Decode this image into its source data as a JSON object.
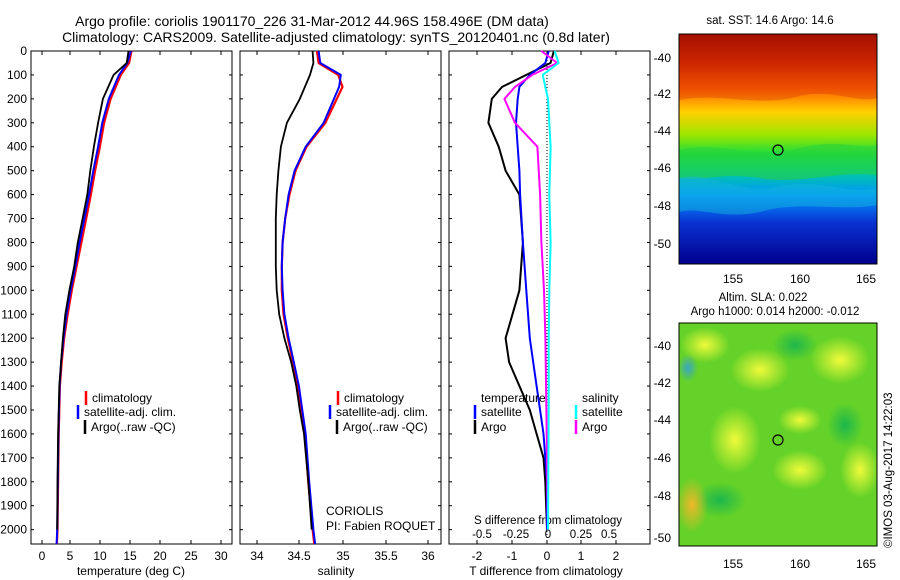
{
  "title": {
    "line1": "Argo profile: coriolis 1901170_226 31-Mar-2012 44.96S 158.496E (DM data)",
    "line2": "Climatology: CARS2009. Satellite-adjusted climatology: synTS_20120401.nc (0.8d later)"
  },
  "depth_ticks": [
    0,
    100,
    200,
    300,
    400,
    500,
    600,
    700,
    800,
    900,
    1000,
    1100,
    1200,
    1300,
    1400,
    1500,
    1600,
    1700,
    1800,
    1900,
    2000
  ],
  "panels": {
    "temperature": {
      "xlabel": "temperature (deg C)",
      "xticks": [
        "0",
        "5",
        "10",
        "15",
        "20",
        "25",
        "30"
      ],
      "legend": [
        "climatology",
        "satellite-adj. clim.",
        "Argo(..raw -QC)"
      ]
    },
    "salinity": {
      "xlabel": "salinity",
      "xticks": [
        "34",
        "34.5",
        "35",
        "35.5",
        "36"
      ],
      "legend": [
        "climatology",
        "satellite-adj. clim.",
        "Argo(..raw -QC)"
      ],
      "source": "CORIOLIS",
      "pi": "PI: Fabien ROQUET"
    },
    "difference": {
      "xlabel": "T difference from climatology",
      "xticks": [
        "-2",
        "-1",
        "0",
        "1",
        "2"
      ],
      "top_label": "S difference from climatology",
      "top_ticks": [
        "-0.5",
        "-0.25",
        "0",
        "0.25",
        "0.5"
      ],
      "legend_temperature_header": "temperature",
      "legend_salinity_header": "salinity",
      "legend_satellite": "satellite",
      "legend_argo": "Argo"
    }
  },
  "maps": {
    "sst_title": "sat. SST: 14.6 Argo: 14.6",
    "sla_title1": "Altim. SLA: 0.022",
    "sla_title2": "Argo h1000: 0.014 h2000: -0.012",
    "lat_ticks": [
      "-40",
      "-42",
      "-44",
      "-46",
      "-48",
      "-50"
    ],
    "lon_ticks": [
      "155",
      "160",
      "165"
    ],
    "credit": "©IMOS 03-Aug-2017 14:22:03"
  },
  "colors": {
    "climatology": "#ff0000",
    "satellite": "#0000ff",
    "argo": "#000000",
    "sal_satellite": "#00ffff",
    "sal_argo": "#ff00ff"
  },
  "chart_data": [
    {
      "type": "line",
      "title": "",
      "xlabel": "temperature (deg C)",
      "ylabel": "",
      "xlim": [
        -2,
        31
      ],
      "ylim": [
        2060,
        0
      ],
      "series": [
        {
          "name": "climatology",
          "x": [
            15.0,
            14.6,
            13.2,
            11.5,
            10.4,
            9.7,
            8.9,
            8.2,
            7.4,
            6.6,
            5.8,
            5.0,
            4.3,
            3.7,
            3.3,
            3.0,
            2.9,
            2.8,
            2.7,
            2.6,
            2.5
          ],
          "y": [
            0,
            50,
            100,
            200,
            300,
            400,
            500,
            600,
            700,
            800,
            900,
            1000,
            1100,
            1200,
            1300,
            1400,
            1500,
            1600,
            1800,
            2000,
            2060
          ]
        },
        {
          "name": "satellite-adj. clim.",
          "x": [
            14.9,
            14.3,
            12.9,
            11.2,
            10.1,
            9.4,
            8.6,
            7.9,
            7.1,
            6.3,
            5.6,
            4.8,
            4.1,
            3.6,
            3.2,
            2.95,
            2.85,
            2.75,
            2.65,
            2.55,
            2.45
          ],
          "y": [
            0,
            50,
            100,
            200,
            300,
            400,
            500,
            600,
            700,
            800,
            900,
            1000,
            1100,
            1200,
            1300,
            1400,
            1500,
            1600,
            1800,
            2000,
            2060
          ]
        },
        {
          "name": "Argo(..raw -QC)",
          "x": [
            14.5,
            14.2,
            12.0,
            10.2,
            9.4,
            8.7,
            8.1,
            7.6,
            6.8,
            6.0,
            5.4,
            4.6,
            3.9,
            3.5,
            3.2,
            2.9,
            2.8,
            2.7,
            2.6,
            2.55
          ],
          "y": [
            0,
            50,
            100,
            200,
            300,
            400,
            500,
            600,
            700,
            800,
            900,
            1000,
            1100,
            1200,
            1300,
            1400,
            1500,
            1600,
            1800,
            2000
          ]
        }
      ]
    },
    {
      "type": "line",
      "title": "",
      "xlabel": "salinity",
      "ylabel": "",
      "xlim": [
        33.8,
        36.1
      ],
      "ylim": [
        2060,
        0
      ],
      "series": [
        {
          "name": "climatology",
          "x": [
            34.7,
            34.72,
            34.95,
            35.0,
            34.8,
            34.58,
            34.45,
            34.38,
            34.33,
            34.3,
            34.29,
            34.29,
            34.31,
            34.36,
            34.42,
            34.48,
            34.52,
            34.56,
            34.6,
            34.65,
            34.67
          ],
          "y": [
            0,
            50,
            100,
            150,
            300,
            400,
            500,
            600,
            700,
            800,
            900,
            1000,
            1100,
            1200,
            1300,
            1400,
            1500,
            1600,
            1800,
            2000,
            2060
          ]
        },
        {
          "name": "satellite-adj. clim.",
          "x": [
            34.72,
            34.74,
            34.98,
            34.96,
            34.78,
            34.57,
            34.44,
            34.37,
            34.33,
            34.3,
            34.29,
            34.3,
            34.32,
            34.37,
            34.43,
            34.49,
            34.53,
            34.57,
            34.61,
            34.66,
            34.68
          ],
          "y": [
            0,
            50,
            100,
            150,
            300,
            400,
            500,
            600,
            700,
            800,
            900,
            1000,
            1100,
            1200,
            1300,
            1400,
            1500,
            1600,
            1800,
            2000,
            2060
          ]
        },
        {
          "name": "Argo(..raw -QC)",
          "x": [
            34.65,
            34.66,
            34.62,
            34.5,
            34.35,
            34.28,
            34.25,
            34.23,
            34.22,
            34.22,
            34.22,
            34.23,
            34.26,
            34.32,
            34.4,
            34.46,
            34.5,
            34.55,
            34.6,
            34.64
          ],
          "y": [
            0,
            50,
            100,
            200,
            300,
            400,
            500,
            600,
            700,
            800,
            900,
            1000,
            1100,
            1200,
            1300,
            1400,
            1500,
            1600,
            1800,
            2000
          ]
        }
      ]
    },
    {
      "type": "line",
      "title": "",
      "xlabel": "T difference from climatology",
      "ylabel": "",
      "xlim": [
        -2.8,
        2.8
      ],
      "ylim": [
        2060,
        0
      ],
      "series": [
        {
          "name": "temperature satellite",
          "x": [
            0.05,
            -0.05,
            -0.5,
            -0.8,
            -0.85,
            -0.9,
            -0.85,
            -0.8,
            -0.78,
            -0.7,
            -0.6,
            -0.5,
            -0.4,
            -0.3,
            -0.2,
            -0.1,
            -0.05,
            0,
            0
          ],
          "y": [
            0,
            50,
            100,
            150,
            200,
            300,
            400,
            500,
            600,
            800,
            1000,
            1200,
            1300,
            1400,
            1500,
            1600,
            1700,
            1800,
            2000
          ]
        },
        {
          "name": "temperature Argo",
          "x": [
            0.2,
            0.1,
            -0.6,
            -1.3,
            -1.6,
            -1.7,
            -1.4,
            -1.2,
            -0.8,
            -0.7,
            -0.8,
            -1.2,
            -1.1,
            -0.8,
            -0.5,
            -0.3,
            -0.1,
            -0.05,
            0
          ],
          "y": [
            0,
            50,
            100,
            150,
            200,
            300,
            400,
            500,
            600,
            800,
            1000,
            1200,
            1300,
            1400,
            1500,
            1600,
            1700,
            1800,
            2000
          ]
        },
        {
          "name": "salinity satellite",
          "x": [
            0.05,
            0.08,
            -0.04,
            0.0,
            0.02,
            0.01,
            0.02,
            0.01,
            0.005,
            0.005,
            0
          ],
          "y": [
            0,
            50,
            100,
            200,
            400,
            600,
            800,
            1000,
            1200,
            1500,
            2000
          ]
        },
        {
          "name": "salinity Argo",
          "x": [
            -0.05,
            0.07,
            -0.12,
            -0.25,
            -0.33,
            -0.25,
            -0.08,
            -0.06,
            -0.05,
            -0.03,
            -0.02,
            0
          ],
          "y": [
            0,
            50,
            100,
            150,
            200,
            300,
            400,
            600,
            800,
            1000,
            1200,
            2000
          ]
        }
      ]
    }
  ]
}
